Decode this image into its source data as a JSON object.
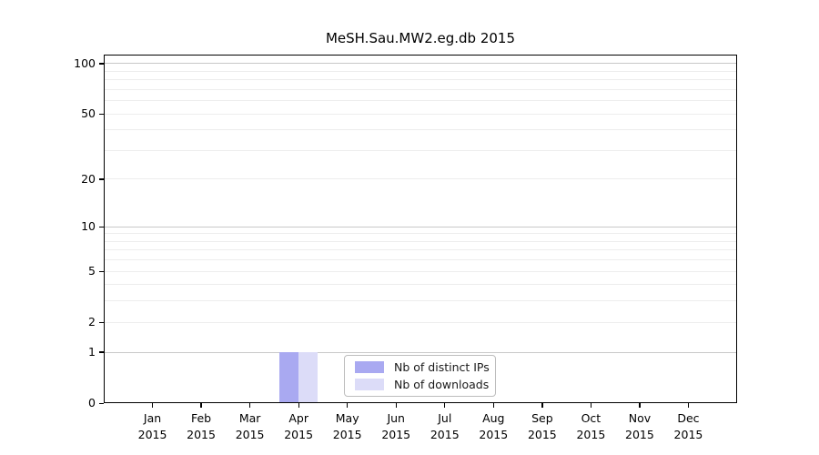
{
  "title": "MeSH.Sau.MW2.eg.db 2015",
  "chart_data": {
    "type": "bar",
    "title": "MeSH.Sau.MW2.eg.db 2015",
    "categories": [
      "Jan",
      "Feb",
      "Mar",
      "Apr",
      "May",
      "Jun",
      "Jul",
      "Aug",
      "Sep",
      "Oct",
      "Nov",
      "Dec"
    ],
    "x_sublabel": "2015",
    "series": [
      {
        "name": "Nb of distinct IPs",
        "color": "#a9a9f1",
        "values": [
          0,
          0,
          0,
          1,
          0,
          0,
          0,
          0,
          0,
          0,
          0,
          0
        ]
      },
      {
        "name": "Nb of downloads",
        "color": "#dcdcf8",
        "values": [
          0,
          0,
          0,
          1,
          0,
          0,
          0,
          0,
          0,
          0,
          0,
          0
        ]
      }
    ],
    "y_scale": "log1p",
    "y_ticks": [
      0,
      1,
      2,
      5,
      10,
      20,
      50,
      100
    ],
    "y_major_gridlines": [
      1,
      10,
      100
    ],
    "y_minor_gridlines": [
      2,
      3,
      4,
      5,
      6,
      7,
      8,
      9,
      20,
      30,
      40,
      50,
      60,
      70,
      80,
      90
    ],
    "ylim": [
      0,
      113
    ],
    "grid": true,
    "legend_position": "bottom-center"
  },
  "colors": {
    "background": "#ffffff",
    "axis": "#000000",
    "text": "#000000",
    "major_gridline": "#c8c8c8",
    "minor_gridline": "#ededed",
    "legend_border": "#bdbdbd"
  }
}
